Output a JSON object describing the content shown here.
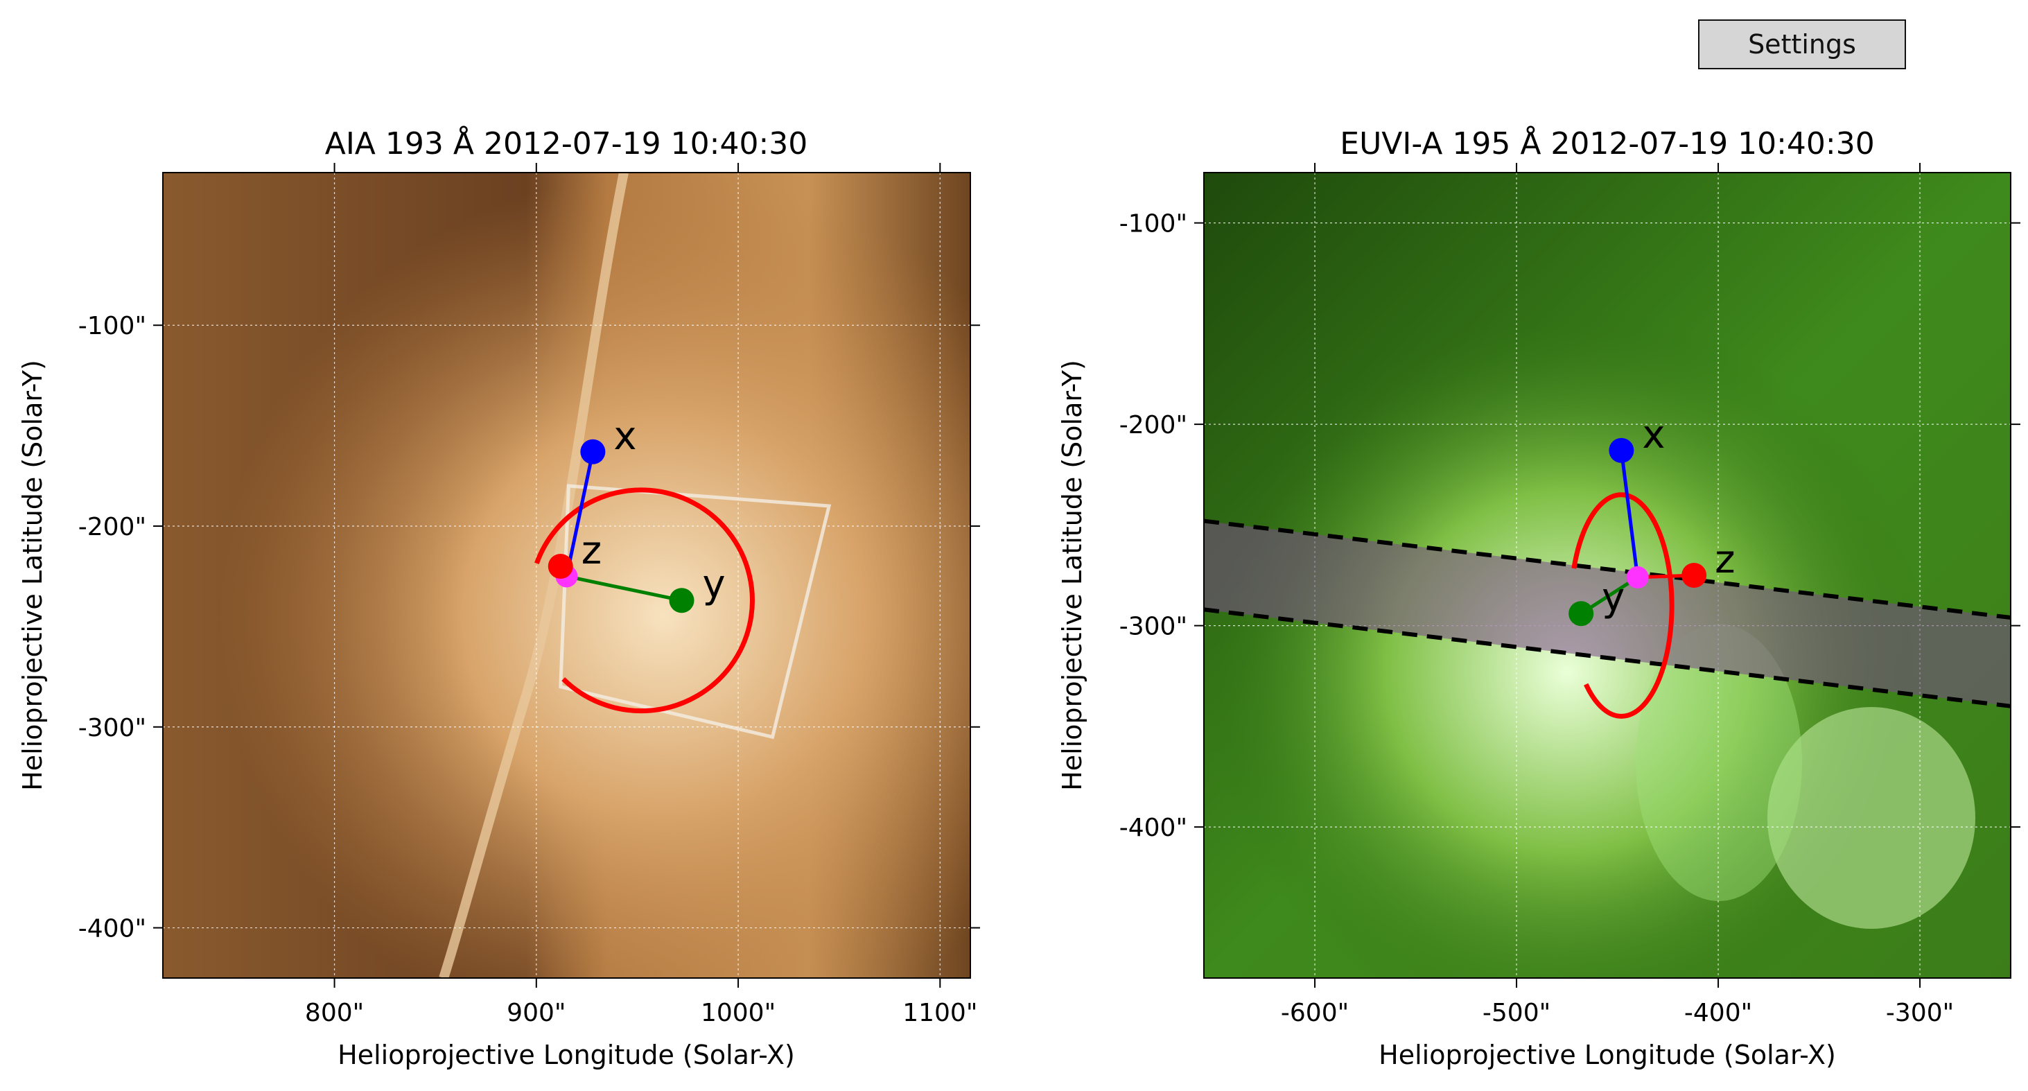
{
  "toolbar": {
    "settings_label": "Settings"
  },
  "chart_data": [
    {
      "type": "image",
      "title": "AIA 193 Å 2012-07-19 10:40:30",
      "xlabel": "Helioprojective Longitude (Solar-X)",
      "ylabel": "Helioprojective Latitude (Solar-Y)",
      "xlim": [
        715,
        1115
      ],
      "ylim": [
        -425,
        -24
      ],
      "xticks": [
        800,
        900,
        1000,
        1100
      ],
      "xtick_labels": [
        "800\"",
        "900\"",
        "1000\"",
        "1100\""
      ],
      "yticks": [
        -100,
        -200,
        -300,
        -400
      ],
      "ytick_labels": [
        "-100\"",
        "-200\"",
        "-300\"",
        "-400\""
      ],
      "grid": true,
      "colormap": "sdoaia193",
      "axes_markers": [
        {
          "label": "x",
          "color": "#0000ff",
          "x": 928,
          "y": -163
        },
        {
          "label": "y",
          "color": "#008000",
          "x": 972,
          "y": -237
        },
        {
          "label": "z",
          "color": "#ff0000",
          "x": 912,
          "y": -220
        }
      ],
      "origin": {
        "color": "#ff33ff",
        "x": 915,
        "y": -225
      },
      "arc": {
        "color": "#ff0000",
        "center": [
          952,
          -237
        ],
        "radius": 55
      },
      "box_corners": [
        [
          916,
          -180
        ],
        [
          1045,
          -190
        ],
        [
          1017,
          -305
        ],
        [
          912,
          -280
        ]
      ]
    },
    {
      "type": "image",
      "title": "EUVI-A 195 Å 2012-07-19 10:40:30",
      "xlabel": "Helioprojective Longitude (Solar-X)",
      "ylabel": "Helioprojective Latitude (Solar-Y)",
      "xlim": [
        -655,
        -255
      ],
      "ylim": [
        -475,
        -75
      ],
      "xticks": [
        -600,
        -500,
        -400,
        -300
      ],
      "xtick_labels": [
        "-600\"",
        "-500\"",
        "-400\"",
        "-300\""
      ],
      "yticks": [
        -100,
        -200,
        -300,
        -400
      ],
      "ytick_labels": [
        "-100\"",
        "-200\"",
        "-300\"",
        "-400\""
      ],
      "grid": true,
      "colormap": "euvi195",
      "axes_markers": [
        {
          "label": "x",
          "color": "#0000ff",
          "x": -448,
          "y": -213
        },
        {
          "label": "y",
          "color": "#008000",
          "x": -468,
          "y": -294
        },
        {
          "label": "z",
          "color": "#ff0000",
          "x": -412,
          "y": -275
        }
      ],
      "origin": {
        "color": "#ff33ff",
        "x": -440,
        "y": -276
      },
      "band": {
        "upper": [
          [
            -655,
            -248
          ],
          [
            -255,
            -296
          ]
        ],
        "lower": [
          [
            -655,
            -292
          ],
          [
            -255,
            -340
          ]
        ]
      },
      "arc": {
        "color": "#ff0000",
        "center": [
          -448,
          -290
        ],
        "rx": 25,
        "ry": 55
      }
    }
  ]
}
